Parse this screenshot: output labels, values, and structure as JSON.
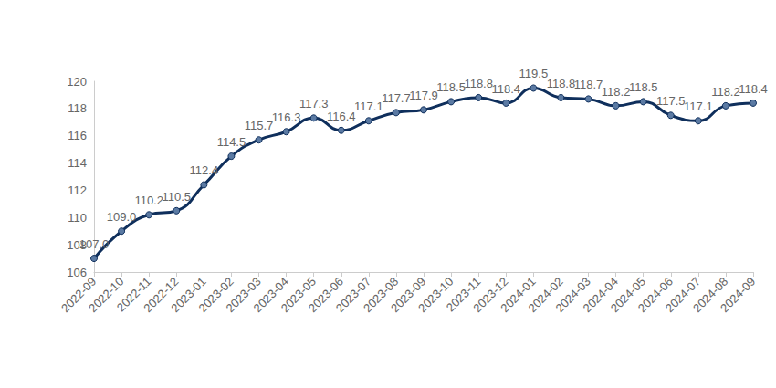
{
  "chart_data": {
    "type": "line",
    "categories": [
      "2022-09",
      "2022-10",
      "2022-11",
      "2022-12",
      "2023-01",
      "2023-02",
      "2023-03",
      "2023-04",
      "2023-05",
      "2023-06",
      "2023-07",
      "2023-08",
      "2023-09",
      "2023-10",
      "2023-11",
      "2023-12",
      "2024-01",
      "2024-02",
      "2024-03",
      "2024-04",
      "2024-05",
      "2024-06",
      "2024-07",
      "2024-08",
      "2024-09"
    ],
    "values": [
      107.0,
      109.0,
      110.2,
      110.5,
      112.4,
      114.5,
      115.7,
      116.3,
      117.3,
      116.4,
      117.1,
      117.7,
      117.9,
      118.5,
      118.8,
      118.4,
      119.5,
      118.8,
      118.7,
      118.2,
      118.5,
      117.5,
      117.1,
      118.2,
      118.4
    ],
    "value_labels": [
      "107.0",
      "109.0",
      "110.2",
      "110.5",
      "112.4",
      "114.5",
      "115.7",
      "116.3",
      "117.3",
      "116.4",
      "117.1",
      "117.7",
      "117.9",
      "118.5",
      "118.8",
      "118.4",
      "119.5",
      "118.8",
      "118.7",
      "118.2",
      "118.5",
      "117.5",
      "117.1",
      "118.2",
      "118.4"
    ],
    "color": "#0f2f5c",
    "ylim": [
      106,
      120
    ],
    "yticks": [
      106,
      108,
      110,
      112,
      114,
      116,
      118,
      120
    ],
    "grid": false,
    "data_labels": true,
    "marker": "circle",
    "line_style": "smooth"
  }
}
